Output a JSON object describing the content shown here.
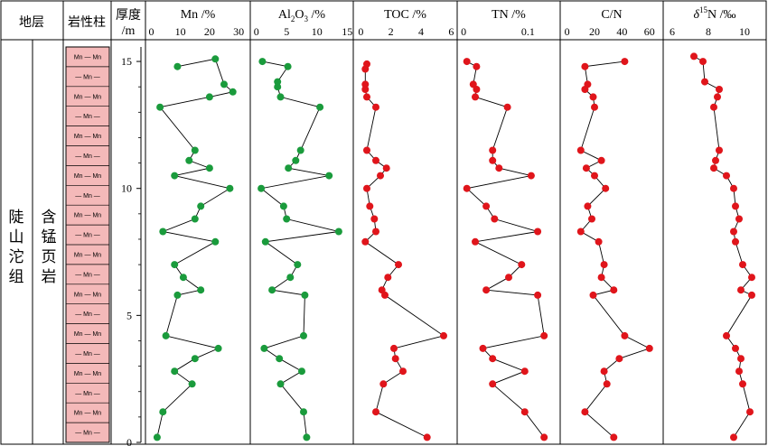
{
  "colors": {
    "mn": "#1a9b3c",
    "al": "#1a9b3c",
    "toc": "#e0151b",
    "tn": "#e0151b",
    "cn": "#e0151b",
    "d15n": "#e0151b",
    "lith_fill": "#f4b9b9"
  },
  "columns": {
    "strata": "地层",
    "lithology": "岩性柱",
    "depth_line1": "厚度",
    "depth_line2": "/m"
  },
  "strata": {
    "formation": "陡山沱组",
    "lithology_name": "含锰页岩"
  },
  "lithology_symbol": {
    "pattern_a": "Mn — Mn",
    "pattern_b": "— Mn —"
  },
  "depth_axis": {
    "ticks": [
      "0",
      "5",
      "10",
      "15"
    ]
  },
  "chart_data": [
    {
      "type": "line",
      "key": "mn",
      "title_main": "Mn",
      "title_unit": " /%",
      "xticks": [
        "0",
        "10",
        "20",
        "30"
      ],
      "xlim": [
        -2,
        34
      ],
      "ylim": [
        0,
        15.5
      ],
      "points": [
        [
          9,
          14.8
        ],
        [
          22,
          15.1
        ],
        [
          25,
          14.1
        ],
        [
          28,
          13.8
        ],
        [
          20,
          13.6
        ],
        [
          3,
          13.2
        ],
        [
          15,
          11.5
        ],
        [
          13,
          11.1
        ],
        [
          20,
          10.8
        ],
        [
          8,
          10.5
        ],
        [
          27,
          10.0
        ],
        [
          17,
          9.3
        ],
        [
          15,
          8.8
        ],
        [
          4,
          8.3
        ],
        [
          22,
          7.9
        ],
        [
          8,
          7.0
        ],
        [
          11,
          6.5
        ],
        [
          17,
          6.0
        ],
        [
          9,
          5.8
        ],
        [
          5,
          4.2
        ],
        [
          23,
          3.7
        ],
        [
          15,
          3.3
        ],
        [
          8,
          2.8
        ],
        [
          14,
          2.3
        ],
        [
          4,
          1.2
        ],
        [
          2,
          0.2
        ]
      ]
    },
    {
      "type": "line",
      "key": "al",
      "title_main": "Al",
      "title_sub": "2",
      "title_main2": "O",
      "title_sub2": "3",
      "title_unit": " /%",
      "xticks": [
        "0",
        "5",
        "10",
        "15"
      ],
      "xlim": [
        -1,
        16
      ],
      "ylim": [
        0,
        15.5
      ],
      "points": [
        [
          1,
          15
        ],
        [
          5.2,
          14.8
        ],
        [
          3.5,
          14.2
        ],
        [
          3.5,
          14.0
        ],
        [
          4,
          13.6
        ],
        [
          10.5,
          13.2
        ],
        [
          7.3,
          11.5
        ],
        [
          6.5,
          11.1
        ],
        [
          5.3,
          10.8
        ],
        [
          12,
          10.5
        ],
        [
          0.8,
          10.0
        ],
        [
          4.5,
          9.3
        ],
        [
          5,
          8.8
        ],
        [
          13.6,
          8.3
        ],
        [
          1.5,
          7.9
        ],
        [
          6.8,
          7.0
        ],
        [
          5.6,
          6.5
        ],
        [
          2.6,
          6.0
        ],
        [
          8,
          5.8
        ],
        [
          7.8,
          4.2
        ],
        [
          1.3,
          3.7
        ],
        [
          3.8,
          3.3
        ],
        [
          7.5,
          2.8
        ],
        [
          4,
          2.3
        ],
        [
          7.8,
          1.2
        ],
        [
          8.3,
          0.2
        ]
      ]
    },
    {
      "type": "line",
      "key": "toc",
      "title_main": "TOC",
      "title_unit": " /%",
      "xticks": [
        "0",
        "2",
        "4",
        "6"
      ],
      "xlim": [
        -0.5,
        6.4
      ],
      "ylim": [
        0,
        15.5
      ],
      "points": [
        [
          0.4,
          14.9
        ],
        [
          0.3,
          14.7
        ],
        [
          0.3,
          14.1
        ],
        [
          0.3,
          13.9
        ],
        [
          0.4,
          13.6
        ],
        [
          1.0,
          13.2
        ],
        [
          0.4,
          11.5
        ],
        [
          1.0,
          11.1
        ],
        [
          1.7,
          10.8
        ],
        [
          1.3,
          10.5
        ],
        [
          0.4,
          10.0
        ],
        [
          0.6,
          9.3
        ],
        [
          0.9,
          8.8
        ],
        [
          1.0,
          8.3
        ],
        [
          0.3,
          7.9
        ],
        [
          2.5,
          7.0
        ],
        [
          1.8,
          6.5
        ],
        [
          1.4,
          6.0
        ],
        [
          1.6,
          5.8
        ],
        [
          5.5,
          4.2
        ],
        [
          2.2,
          3.7
        ],
        [
          2.3,
          3.3
        ],
        [
          2.8,
          2.8
        ],
        [
          1.5,
          2.3
        ],
        [
          1.0,
          1.2
        ],
        [
          4.4,
          0.2
        ]
      ]
    },
    {
      "type": "line",
      "key": "tn",
      "title_main": "TN",
      "title_unit": " /%",
      "xticks": [
        "0",
        "0.1"
      ],
      "xlim": [
        -0.01,
        0.15
      ],
      "ylim": [
        0,
        15.5
      ],
      "points": [
        [
          0.005,
          15
        ],
        [
          0.02,
          14.8
        ],
        [
          0.015,
          14.1
        ],
        [
          0.02,
          13.9
        ],
        [
          0.018,
          13.6
        ],
        [
          0.068,
          13.2
        ],
        [
          0.045,
          11.5
        ],
        [
          0.045,
          11.1
        ],
        [
          0.055,
          10.8
        ],
        [
          0.105,
          10.5
        ],
        [
          0.005,
          10.0
        ],
        [
          0.035,
          9.3
        ],
        [
          0.048,
          8.8
        ],
        [
          0.115,
          8.3
        ],
        [
          0.018,
          7.9
        ],
        [
          0.09,
          7.0
        ],
        [
          0.07,
          6.5
        ],
        [
          0.035,
          6.0
        ],
        [
          0.115,
          5.8
        ],
        [
          0.125,
          4.2
        ],
        [
          0.03,
          3.7
        ],
        [
          0.045,
          3.3
        ],
        [
          0.095,
          2.8
        ],
        [
          0.045,
          2.3
        ],
        [
          0.095,
          1.2
        ],
        [
          0.125,
          0.2
        ]
      ]
    },
    {
      "type": "line",
      "key": "cn",
      "title_main": "C/N",
      "title_unit": "",
      "xticks": [
        "0",
        "20",
        "40",
        "60"
      ],
      "xlim": [
        -5,
        70
      ],
      "ylim": [
        0,
        15.5
      ],
      "points": [
        [
          42,
          15
        ],
        [
          13,
          14.8
        ],
        [
          15,
          14.1
        ],
        [
          13,
          13.9
        ],
        [
          19,
          13.6
        ],
        [
          20,
          13.2
        ],
        [
          10,
          11.5
        ],
        [
          25,
          11.1
        ],
        [
          14,
          10.8
        ],
        [
          20,
          10.5
        ],
        [
          28,
          10.0
        ],
        [
          15,
          9.3
        ],
        [
          18,
          8.8
        ],
        [
          10,
          8.3
        ],
        [
          23,
          7.9
        ],
        [
          27,
          7.0
        ],
        [
          25,
          6.5
        ],
        [
          34,
          6.0
        ],
        [
          19,
          5.8
        ],
        [
          42,
          4.2
        ],
        [
          60,
          3.7
        ],
        [
          38,
          3.3
        ],
        [
          27,
          2.8
        ],
        [
          29,
          2.3
        ],
        [
          13,
          1.2
        ],
        [
          34,
          0.2
        ]
      ]
    },
    {
      "type": "line",
      "key": "d15n",
      "title_pre": "δ",
      "title_sup": "15",
      "title_main": "N",
      "title_unit": " /‰",
      "xticks": [
        "6",
        "8",
        "10"
      ],
      "xlim": [
        5.5,
        11.2
      ],
      "ylim": [
        0,
        15.5
      ],
      "points": [
        [
          7.2,
          15.2
        ],
        [
          7.7,
          15.0
        ],
        [
          7.8,
          14.2
        ],
        [
          8.6,
          13.9
        ],
        [
          8.5,
          13.6
        ],
        [
          8.3,
          13.2
        ],
        [
          8.6,
          11.5
        ],
        [
          8.4,
          11.1
        ],
        [
          8.3,
          10.8
        ],
        [
          9.0,
          10.5
        ],
        [
          9.4,
          10.0
        ],
        [
          9.5,
          9.3
        ],
        [
          9.7,
          8.8
        ],
        [
          9.4,
          8.3
        ],
        [
          9.5,
          7.9
        ],
        [
          9.9,
          7.0
        ],
        [
          10.4,
          6.5
        ],
        [
          9.8,
          6.0
        ],
        [
          10.4,
          5.8
        ],
        [
          9.0,
          4.2
        ],
        [
          9.5,
          3.7
        ],
        [
          9.8,
          3.3
        ],
        [
          9.7,
          2.8
        ],
        [
          9.9,
          2.3
        ],
        [
          10.3,
          1.2
        ],
        [
          9.4,
          0.2
        ]
      ]
    }
  ]
}
